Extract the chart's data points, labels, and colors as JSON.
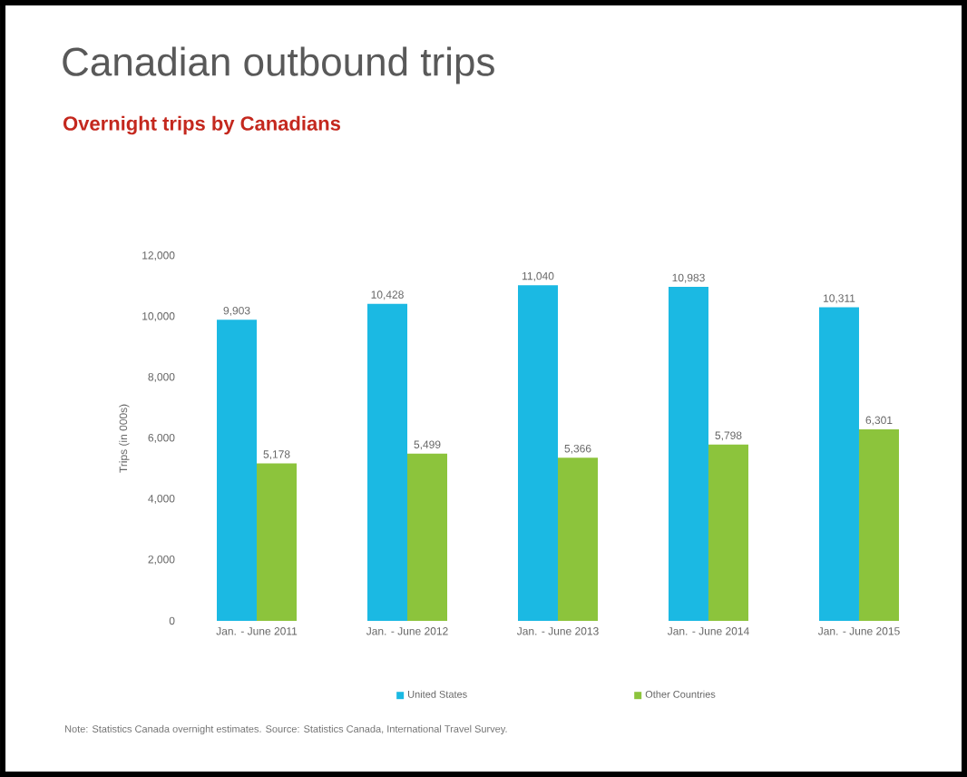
{
  "chart_data": {
    "type": "bar",
    "title": "Canadian outbound trips",
    "subtitle": "Overnight trips by Canadians",
    "ylabel": "Trips (in 000s)",
    "categories": [
      "Jan. - June 2011",
      "Jan. - June 2012",
      "Jan. - June 2013",
      "Jan. - June 2014",
      "Jan. - June 2015"
    ],
    "series": [
      {
        "name": "United States",
        "color": "#1bb9e3",
        "values": [
          9903,
          10428,
          11040,
          10983,
          10311
        ],
        "value_labels": [
          "9,903",
          "10,428",
          "11,040",
          "10,983",
          "10,311"
        ]
      },
      {
        "name": "Other Countries",
        "color": "#8cc43c",
        "values": [
          5178,
          5499,
          5366,
          5798,
          6301
        ],
        "value_labels": [
          "5,178",
          "5,499",
          "5,366",
          "5,798",
          "6,301"
        ]
      }
    ],
    "ylim": [
      0,
      12000
    ],
    "yticks": [
      0,
      {
        "value": 2000,
        "label": "2,000"
      },
      {
        "value": 4000,
        "label": "4,000"
      },
      {
        "value": 6000,
        "label": "6,000"
      },
      {
        "value": 8000,
        "label": "8,000"
      },
      {
        "value": 10000,
        "label": "10,000"
      },
      {
        "value": 12000,
        "label": "12,000"
      }
    ],
    "grid": false,
    "legend": "bottom",
    "annotations": [
      "Note: Statistics Canada overnight estimates. Source: Statistics Canada, International Travel Survey."
    ]
  }
}
